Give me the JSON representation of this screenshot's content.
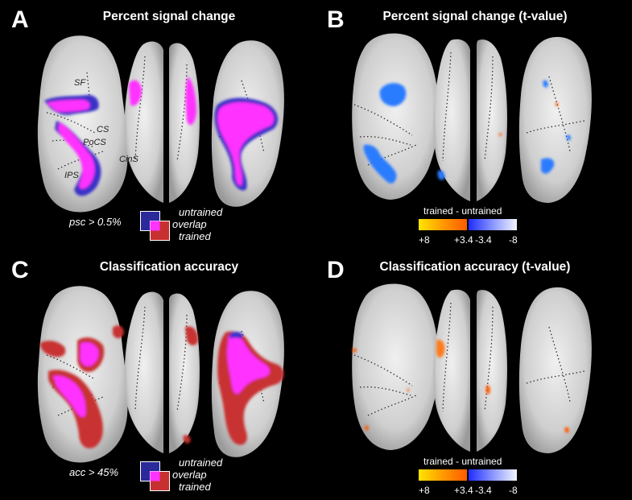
{
  "panels": {
    "a": {
      "letter": "A",
      "title": "Percent signal change",
      "threshold": "psc > 0.5%"
    },
    "b": {
      "letter": "B",
      "title": "Percent signal change (t-value)"
    },
    "c": {
      "letter": "C",
      "title": "Classification accuracy",
      "threshold": "acc > 45%"
    },
    "d": {
      "letter": "D",
      "title": "Classification accuracy (t-value)"
    }
  },
  "sulci": {
    "sf": "SF",
    "cs": "CS",
    "pocs": "PoCS",
    "ips": "IPS",
    "cins": "CinS"
  },
  "legend": {
    "untrained": "untrained",
    "overlap": "overlap",
    "trained": "trained"
  },
  "colorbar": {
    "label": "trained - untrained",
    "ticks": [
      "+8",
      "+3.4",
      "-3.4",
      "-8"
    ]
  },
  "colors": {
    "untrained": "#3b33c8",
    "overlap": "#ff33ff",
    "trained": "#d42b2b",
    "background": "#000000",
    "cortex": "#d8d8d8"
  }
}
